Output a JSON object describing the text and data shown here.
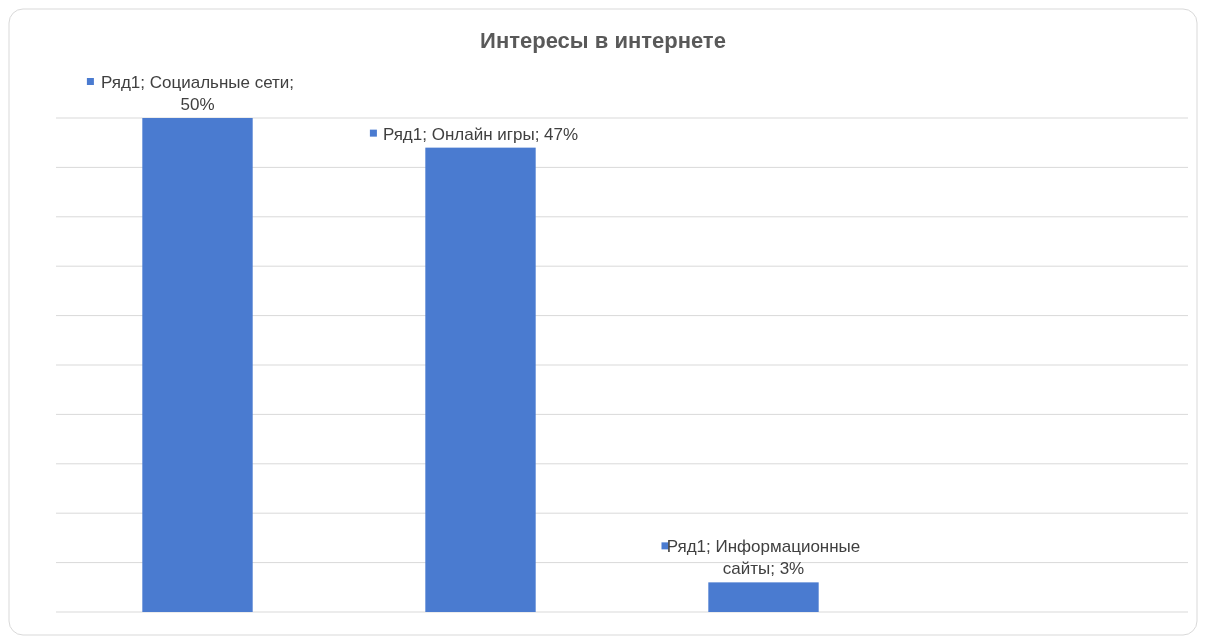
{
  "chart_data": {
    "type": "bar",
    "title": "Интересы в интернете",
    "categories": [
      null,
      null,
      null
    ],
    "values": [
      50,
      47,
      3
    ],
    "color": "#4a7bd0",
    "value_labels": [
      "Ряд1; Социальные сети; 50%",
      "Ряд1; Онлайн игры; 47%",
      "Ряд1; Информационные сайты; 3%"
    ],
    "ylim": [
      0,
      50
    ],
    "yticks": [
      {
        "value": 0,
        "label": null
      },
      {
        "value": 5,
        "label": null
      },
      {
        "value": 10,
        "label": null
      },
      {
        "value": 15,
        "label": null
      },
      {
        "value": 20,
        "label": null
      },
      {
        "value": 25,
        "label": null
      },
      {
        "value": 30,
        "label": null
      },
      {
        "value": 35,
        "label": null
      },
      {
        "value": 40,
        "label": null
      },
      {
        "value": 45,
        "label": null
      },
      {
        "value": 50,
        "label": null
      }
    ],
    "grid": "y"
  }
}
